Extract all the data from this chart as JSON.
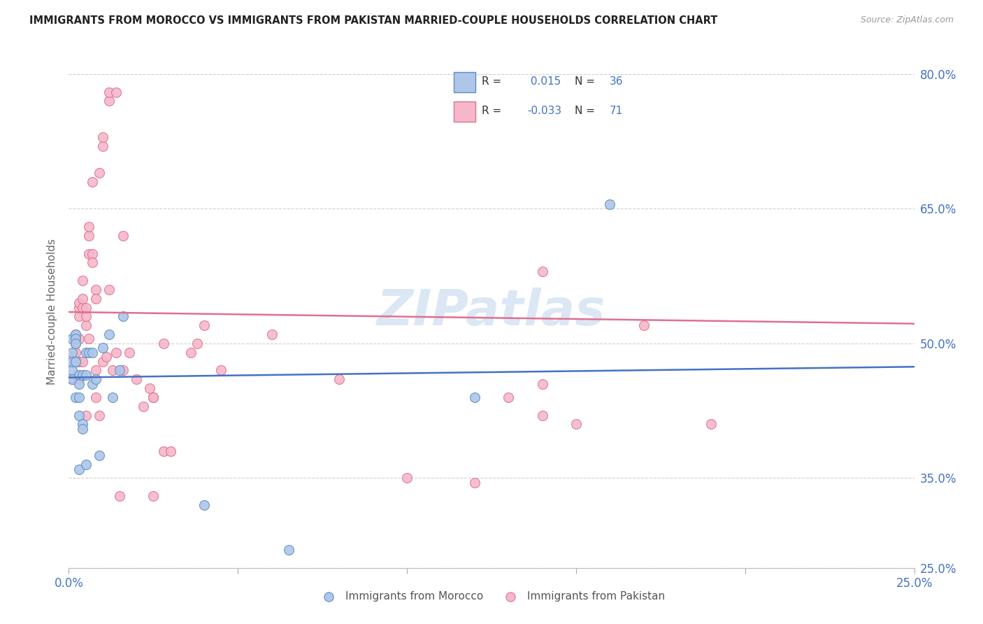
{
  "title": "IMMIGRANTS FROM MOROCCO VS IMMIGRANTS FROM PAKISTAN MARRIED-COUPLE HOUSEHOLDS CORRELATION CHART",
  "source": "Source: ZipAtlas.com",
  "ylabel": "Married-couple Households",
  "xmin": 0.0,
  "xmax": 0.25,
  "ymin": 0.25,
  "ymax": 0.82,
  "xtick_positions": [
    0.0,
    0.05,
    0.1,
    0.15,
    0.2,
    0.25
  ],
  "xticklabels": [
    "0.0%",
    "",
    "",
    "",
    "",
    "25.0%"
  ],
  "ytick_positions": [
    0.25,
    0.35,
    0.5,
    0.65,
    0.8
  ],
  "yticklabels": [
    "25.0%",
    "35.0%",
    "50.0%",
    "65.0%",
    "80.0%"
  ],
  "morocco_fill": "#aec6e8",
  "morocco_edge": "#5b8ec4",
  "pakistan_fill": "#f5b8ca",
  "pakistan_edge": "#e07090",
  "morocco_line_color": "#4472c4",
  "pakistan_line_color": "#e07090",
  "grid_color": "#d0d0d0",
  "morocco_R": 0.015,
  "morocco_N": 36,
  "pakistan_R": -0.033,
  "pakistan_N": 71,
  "watermark": "ZIPatlas",
  "watermark_color": "#c5d8ef",
  "morocco_trend_x0": 0.0,
  "morocco_trend_x1": 0.25,
  "morocco_trend_y0": 0.462,
  "morocco_trend_y1": 0.474,
  "pakistan_trend_x0": 0.0,
  "pakistan_trend_x1": 0.25,
  "pakistan_trend_y0": 0.535,
  "pakistan_trend_y1": 0.522,
  "morocco_x": [
    0.001,
    0.001,
    0.001,
    0.001,
    0.001,
    0.002,
    0.002,
    0.002,
    0.002,
    0.002,
    0.002,
    0.003,
    0.003,
    0.003,
    0.003,
    0.003,
    0.004,
    0.004,
    0.004,
    0.005,
    0.005,
    0.005,
    0.006,
    0.007,
    0.007,
    0.008,
    0.009,
    0.01,
    0.012,
    0.013,
    0.015,
    0.016,
    0.04,
    0.065,
    0.12,
    0.16
  ],
  "morocco_y": [
    0.47,
    0.49,
    0.48,
    0.46,
    0.505,
    0.51,
    0.505,
    0.48,
    0.5,
    0.48,
    0.44,
    0.465,
    0.455,
    0.42,
    0.44,
    0.36,
    0.465,
    0.41,
    0.405,
    0.49,
    0.465,
    0.365,
    0.49,
    0.49,
    0.455,
    0.46,
    0.375,
    0.495,
    0.51,
    0.44,
    0.47,
    0.53,
    0.32,
    0.27,
    0.44,
    0.655
  ],
  "pakistan_x": [
    0.001,
    0.001,
    0.002,
    0.002,
    0.002,
    0.002,
    0.003,
    0.003,
    0.003,
    0.003,
    0.003,
    0.003,
    0.004,
    0.004,
    0.004,
    0.004,
    0.005,
    0.005,
    0.005,
    0.005,
    0.006,
    0.006,
    0.006,
    0.006,
    0.007,
    0.007,
    0.007,
    0.008,
    0.008,
    0.008,
    0.008,
    0.009,
    0.009,
    0.01,
    0.01,
    0.01,
    0.011,
    0.012,
    0.012,
    0.012,
    0.013,
    0.014,
    0.014,
    0.015,
    0.016,
    0.016,
    0.018,
    0.02,
    0.022,
    0.024,
    0.025,
    0.025,
    0.025,
    0.028,
    0.028,
    0.03,
    0.036,
    0.038,
    0.04,
    0.045,
    0.06,
    0.08,
    0.1,
    0.12,
    0.13,
    0.14,
    0.14,
    0.14,
    0.15,
    0.17,
    0.19
  ],
  "pakistan_y": [
    0.46,
    0.48,
    0.49,
    0.5,
    0.505,
    0.51,
    0.46,
    0.48,
    0.505,
    0.53,
    0.54,
    0.545,
    0.48,
    0.54,
    0.57,
    0.55,
    0.52,
    0.53,
    0.54,
    0.42,
    0.62,
    0.63,
    0.6,
    0.505,
    0.6,
    0.68,
    0.59,
    0.56,
    0.55,
    0.44,
    0.47,
    0.69,
    0.42,
    0.72,
    0.73,
    0.48,
    0.485,
    0.77,
    0.78,
    0.56,
    0.47,
    0.78,
    0.49,
    0.33,
    0.47,
    0.62,
    0.49,
    0.46,
    0.43,
    0.45,
    0.44,
    0.44,
    0.33,
    0.5,
    0.38,
    0.38,
    0.49,
    0.5,
    0.52,
    0.47,
    0.51,
    0.46,
    0.35,
    0.345,
    0.44,
    0.455,
    0.42,
    0.58,
    0.41,
    0.52,
    0.41
  ]
}
